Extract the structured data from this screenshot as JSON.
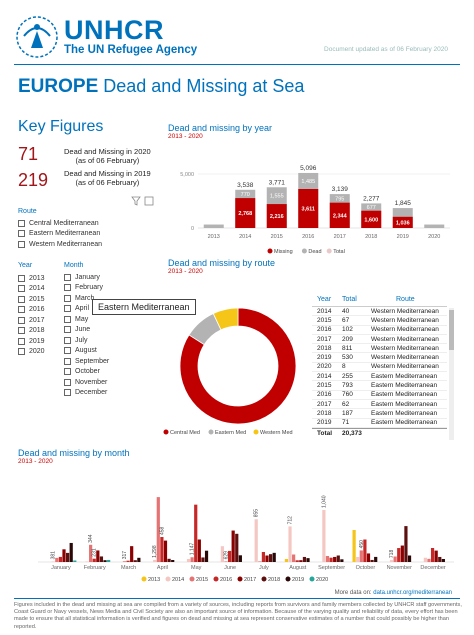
{
  "header": {
    "logo_text": "UNHCR",
    "logo_subtitle": "The UN Refugee Agency",
    "updated": "Document updated as of 06 February 2020",
    "title_bold": "EUROPE",
    "title_rest": "Dead and Missing at Sea"
  },
  "key_figures": {
    "title": "Key Figures",
    "items": [
      {
        "value": "71",
        "label": "Dead and Missing in 2020",
        "note": "(as of 06 February)"
      },
      {
        "value": "219",
        "label": "Dead and Missing in 2019",
        "note": "(as of 06 February)"
      }
    ]
  },
  "filters": {
    "route_label": "Route",
    "routes": [
      "Central Mediterranean",
      "Eastern Mediterranean",
      "Western Mediterranean"
    ],
    "year_label": "Year",
    "years": [
      "2013",
      "2014",
      "2015",
      "2016",
      "2017",
      "2018",
      "2019",
      "2020"
    ],
    "month_label": "Month",
    "months": [
      "January",
      "February",
      "March",
      "April",
      "May",
      "June",
      "July",
      "August",
      "September",
      "October",
      "November",
      "December"
    ]
  },
  "tooltip": "Eastern Mediterranean",
  "by_year": {
    "title": "Dead and missing by year",
    "subtitle": "2013 - 2020",
    "legend": [
      "Missing",
      "Dead",
      "Total"
    ]
  },
  "by_route": {
    "title": "Dead and missing by route",
    "subtitle": "2013 - 2020",
    "legend": [
      "Central Med",
      "Eastern Med",
      "Western Med"
    ]
  },
  "route_table": {
    "headers": [
      "Year",
      "Total",
      "Route"
    ],
    "rows": [
      [
        "2014",
        "40",
        "Western Mediterranean"
      ],
      [
        "2015",
        "67",
        "Western Mediterranean"
      ],
      [
        "2016",
        "102",
        "Western Mediterranean"
      ],
      [
        "2017",
        "209",
        "Western Mediterranean"
      ],
      [
        "2018",
        "811",
        "Western Mediterranean"
      ],
      [
        "2019",
        "530",
        "Western Mediterranean"
      ],
      [
        "2020",
        "8",
        "Western Mediterranean"
      ],
      [
        "2014",
        "255",
        "Eastern Mediterranean"
      ],
      [
        "2015",
        "793",
        "Eastern Mediterranean"
      ],
      [
        "2016",
        "760",
        "Eastern Mediterranean"
      ],
      [
        "2017",
        "62",
        "Eastern Mediterranean"
      ],
      [
        "2018",
        "187",
        "Eastern Mediterranean"
      ],
      [
        "2019",
        "71",
        "Eastern Mediterranean"
      ]
    ],
    "total_label": "Total",
    "total_value": "20,373"
  },
  "by_month": {
    "title": "Dead and missing by month",
    "subtitle": "2013 - 2020",
    "legend": [
      "2013",
      "2014",
      "2015",
      "2016",
      "2017",
      "2018",
      "2019",
      "2020"
    ]
  },
  "footer": {
    "more_label": "More data on:",
    "more_link": "data.unhcr.org/mediterranean",
    "note": "Figures included in the dead and missing at sea are compiled from a variety of sources, including reports from survivors and family members collected by UNHCR staff governments, Coast Guard or Navy vessels, News Media and Civil Society are also an important source of information. Because of the varying quality and reliability of data, every effort has been made to ensure that all statistical information is verified and figures on dead and missing at sea represent conservative estimates of a number that could possibly be higher than reported."
  },
  "colors": {
    "brand": "#0072bc",
    "missing": "#c00000",
    "dead": "#b3b3b3",
    "total": "#e8c8c8",
    "central": "#c00000",
    "eastern": "#b3b3b3",
    "western": "#f5c518"
  },
  "chart_data": [
    {
      "type": "bar",
      "title": "Dead and missing by year",
      "categories": [
        "2013",
        "2014",
        "2015",
        "2016",
        "2017",
        "2018",
        "2019",
        "2020"
      ],
      "series": [
        {
          "name": "Missing",
          "values": [
            null,
            2768,
            2216,
            3611,
            2344,
            1600,
            1036,
            null
          ]
        },
        {
          "name": "Dead",
          "values": [
            null,
            770,
            1555,
            1485,
            795,
            677,
            null,
            null
          ]
        },
        {
          "name": "Total",
          "values": [
            null,
            3538,
            3771,
            5096,
            3139,
            2277,
            1845,
            null
          ]
        }
      ],
      "y_ticks": [
        "0",
        "5,000"
      ],
      "ylim": [
        0,
        5000
      ]
    },
    {
      "type": "pie",
      "title": "Dead and missing by route",
      "labels": [
        "Central Med",
        "Eastern Med",
        "Western Med"
      ],
      "values": [
        0.84,
        0.09,
        0.07
      ]
    },
    {
      "type": "bar",
      "title": "Dead and missing by month",
      "categories": [
        "January",
        "February",
        "March",
        "April",
        "May",
        "June",
        "July",
        "August",
        "September",
        "October",
        "November",
        "December"
      ],
      "labels_shown": [
        [
          "12",
          "381",
          "",
          "",
          "",
          "",
          "",
          ""
        ],
        [
          "",
          "",
          "344",
          "231",
          "",
          "",
          "",
          ""
        ],
        [
          "",
          "",
          "317",
          "",
          "",
          "",
          "",
          ""
        ],
        [
          "",
          "1,298",
          "",
          "458",
          "",
          "",
          "",
          ""
        ],
        [
          "226",
          "",
          "1,147",
          "",
          "",
          "",
          "",
          ""
        ],
        [
          "",
          "",
          "629",
          "",
          "",
          "",
          "",
          ""
        ],
        [
          "",
          "855",
          "",
          "",
          "",
          "",
          "",
          ""
        ],
        [
          "",
          "712",
          "",
          "",
          "",
          "",
          "",
          ""
        ],
        [
          "",
          "1,040",
          "",
          "",
          "",
          "",
          "",
          ""
        ],
        [
          "",
          "",
          "450",
          "",
          "",
          "",
          "",
          ""
        ],
        [
          "",
          "718",
          "",
          "",
          "",
          "",
          "",
          ""
        ],
        [
          "",
          "",
          "",
          "",
          "",
          "",
          "",
          ""
        ]
      ],
      "series": [
        {
          "name": "2013",
          "values": [
            0,
            0,
            0,
            0,
            0,
            0,
            0,
            60,
            0,
            640,
            0,
            0
          ]
        },
        {
          "name": "2014",
          "values": [
            12,
            12,
            0,
            42,
            60,
            316,
            855,
            712,
            1040,
            100,
            38,
            86
          ]
        },
        {
          "name": "2015",
          "values": [
            82,
            344,
            15,
            1298,
            95,
            12,
            12,
            150,
            120,
            232,
            110,
            63
          ]
        },
        {
          "name": "2016",
          "values": [
            102,
            66,
            26,
            500,
            1147,
            222,
            200,
            34,
            86,
            450,
            279,
            280
          ]
        },
        {
          "name": "2017",
          "values": [
            254,
            231,
            317,
            428,
            450,
            629,
            130,
            36,
            101,
            171,
            329,
            228
          ]
        },
        {
          "name": "2018",
          "values": [
            182,
            111,
            36,
            64,
            91,
            564,
            157,
            101,
            130,
            41,
            718,
            101
          ]
        },
        {
          "name": "2019",
          "values": [
            381,
            36,
            84,
            40,
            226,
            134,
            183,
            77,
            54,
            102,
            130,
            60
          ]
        },
        {
          "name": "2020",
          "values": [
            30,
            41,
            0,
            0,
            0,
            0,
            0,
            0,
            0,
            0,
            0,
            0
          ]
        }
      ]
    }
  ]
}
